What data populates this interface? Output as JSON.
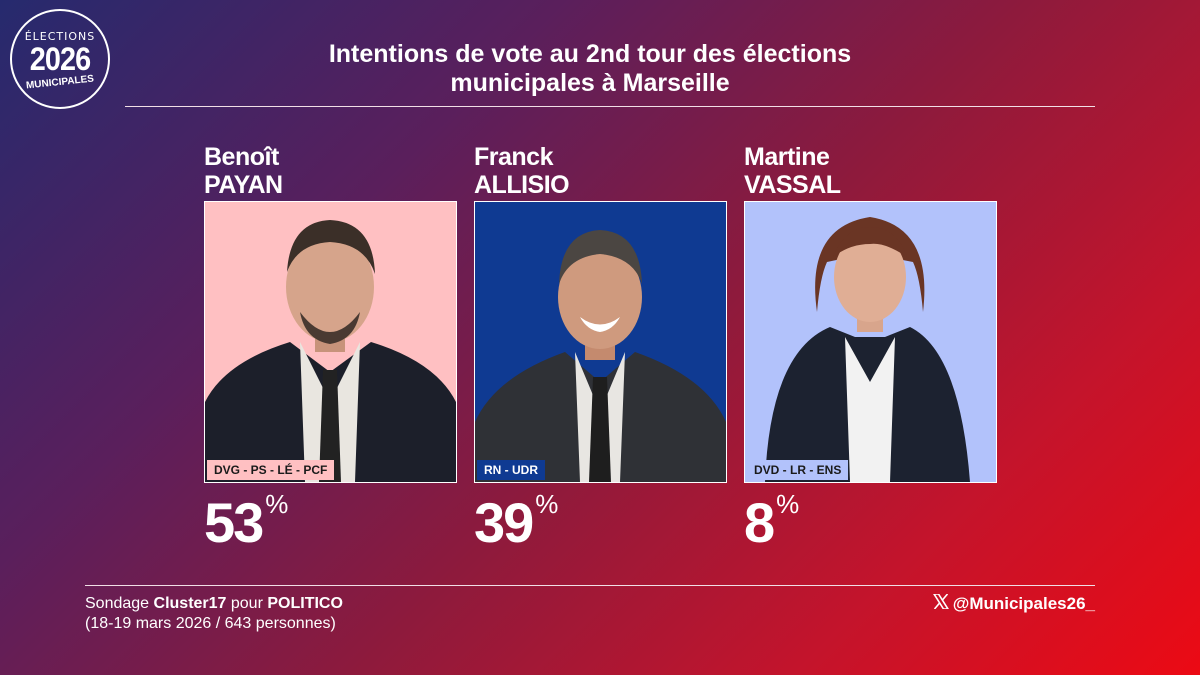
{
  "logo": {
    "line1": "ÉLECTIONS",
    "line2": "2026",
    "line3": "MUNICIPALES"
  },
  "title": {
    "line1": "Intentions de vote au 2nd tour des élections",
    "line2": "municipales à Marseille"
  },
  "candidates": [
    {
      "first": "Benoît",
      "last": "PAYAN",
      "party": "DVG - PS - LÉ - PCF",
      "percent": "53",
      "unit": "%",
      "photo_bg": "#ffc0c2",
      "badge_bg": "#ffc0c2",
      "badge_color": "#1a1a1a"
    },
    {
      "first": "Franck",
      "last": "ALLISIO",
      "party": "RN - UDR",
      "percent": "39",
      "unit": "%",
      "photo_bg": "#0f3a92",
      "badge_bg": "#0f3a92",
      "badge_color": "#ffffff"
    },
    {
      "first": "Martine",
      "last": "VASSAL",
      "party": "DVD - LR - ENS",
      "percent": "8",
      "unit": "%",
      "photo_bg": "#b2c2fb",
      "badge_bg": "#b2c2fb",
      "badge_color": "#1a1a1a"
    }
  ],
  "footer": {
    "source_prefix": "Sondage ",
    "source_institute": "Cluster17",
    "source_mid": " pour ",
    "source_media": "POLITICO",
    "source_details": "(18-19 mars 2026 / 643 personnes)",
    "x_icon": "x-logo-icon",
    "handle": "@Municipales26_"
  }
}
